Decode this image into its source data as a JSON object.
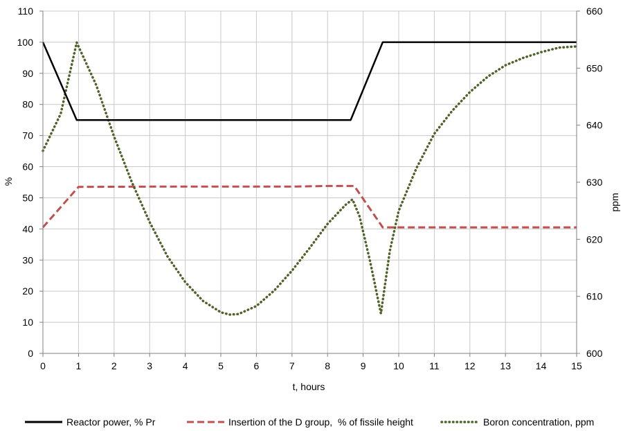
{
  "chart_data": {
    "type": "line",
    "xlabel": "t, hours",
    "ylabel_left": "%",
    "ylabel_right": "ppm",
    "xlim": [
      0,
      15
    ],
    "ylim_left": [
      0,
      110
    ],
    "ylim_right": [
      600,
      660
    ],
    "x_ticks": [
      "0",
      "1",
      "2",
      "3",
      "4",
      "5",
      "6",
      "7",
      "8",
      "9",
      "10",
      "11",
      "12",
      "13",
      "14",
      "15"
    ],
    "y_left_ticks": [
      "0",
      "10",
      "20",
      "30",
      "40",
      "50",
      "60",
      "70",
      "80",
      "90",
      "100",
      "110"
    ],
    "y_right_ticks": [
      "600",
      "610",
      "620",
      "630",
      "640",
      "650",
      "660"
    ],
    "grid": true,
    "legend_position": "bottom",
    "series": [
      {
        "name": "Reactor power, % Pr",
        "axis": "left",
        "style": "solid",
        "color": "#000000",
        "x": [
          0,
          0.95,
          8.65,
          9.55,
          15
        ],
        "y": [
          100,
          75,
          75,
          100,
          100
        ]
      },
      {
        "name": "Insertion of the D group,  % of fissile height",
        "axis": "left",
        "style": "dashed",
        "color": "#c0504d",
        "x": [
          0,
          1.0,
          3.0,
          5.0,
          7.0,
          8.0,
          8.75,
          9.55,
          15
        ],
        "y": [
          40.5,
          53.5,
          53.6,
          53.6,
          53.6,
          53.8,
          53.8,
          40.5,
          40.5
        ]
      },
      {
        "name": "Boron concentration, ppm",
        "axis": "right",
        "style": "dotted",
        "color": "#4f6228",
        "x": [
          0,
          0.5,
          0.95,
          1.5,
          2.0,
          2.5,
          3.0,
          3.5,
          4.0,
          4.5,
          5.0,
          5.25,
          5.5,
          6.0,
          6.5,
          7.0,
          7.5,
          8.0,
          8.5,
          8.7,
          8.9,
          9.2,
          9.5,
          9.75,
          10.0,
          10.5,
          11.0,
          11.5,
          12.0,
          12.5,
          13.0,
          13.5,
          14.0,
          14.5,
          15.0
        ],
        "y": [
          635.5,
          642,
          654.5,
          647,
          638,
          630,
          623,
          617,
          612.5,
          609.2,
          607.2,
          606.8,
          606.9,
          608.3,
          611,
          614.5,
          618.5,
          622.7,
          626,
          627,
          624,
          616,
          607,
          618,
          625,
          632.5,
          638.5,
          642.5,
          645.8,
          648.5,
          650.5,
          651.8,
          652.8,
          653.6,
          653.8
        ]
      }
    ]
  }
}
